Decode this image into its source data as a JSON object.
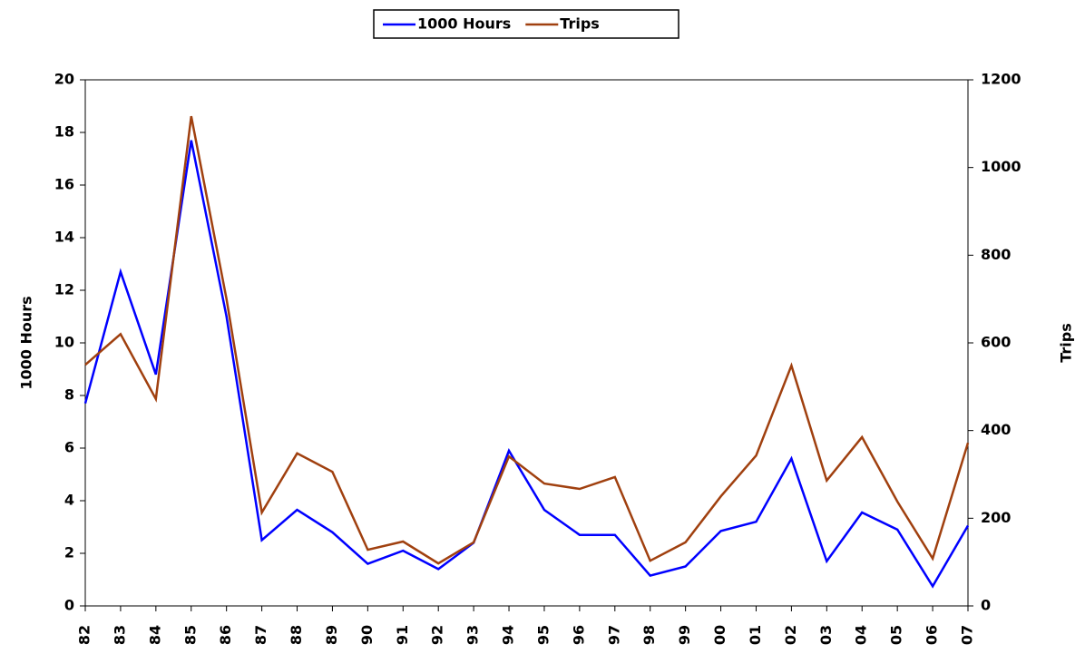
{
  "chart_data": {
    "type": "line",
    "categories": [
      "82",
      "83",
      "84",
      "85",
      "86",
      "87",
      "88",
      "89",
      "90",
      "91",
      "92",
      "93",
      "94",
      "95",
      "96",
      "97",
      "98",
      "99",
      "00",
      "01",
      "02",
      "03",
      "04",
      "05",
      "06",
      "07"
    ],
    "series": [
      {
        "name": "1000 Hours",
        "color": "#0000ff",
        "values": [
          7.7,
          12.7,
          8.8,
          17.7,
          11.0,
          2.5,
          3.65,
          2.8,
          1.6,
          2.1,
          1.4,
          2.4,
          5.9,
          3.65,
          2.7,
          2.7,
          1.15,
          1.5,
          2.85,
          3.2,
          5.6,
          1.7,
          3.55,
          2.9,
          0.75,
          3.05
        ]
      },
      {
        "name": "Trips",
        "color": "#a0400f",
        "axis": "y2",
        "values": [
          550,
          620,
          472,
          1117,
          700,
          213,
          348,
          306,
          128,
          147,
          97,
          145,
          341,
          279,
          267,
          294,
          103,
          145,
          250,
          343,
          548,
          286,
          385,
          238,
          108,
          372
        ]
      }
    ],
    "ylabel": "1000 Hours",
    "y2label": "Trips",
    "ylim": [
      0,
      20
    ],
    "yticks": [
      0,
      2,
      4,
      6,
      8,
      10,
      12,
      14,
      16,
      18,
      20
    ],
    "y2lim": [
      0,
      1200
    ],
    "y2ticks": [
      0,
      200,
      400,
      600,
      800,
      1000,
      1200
    ],
    "legend": "top"
  }
}
